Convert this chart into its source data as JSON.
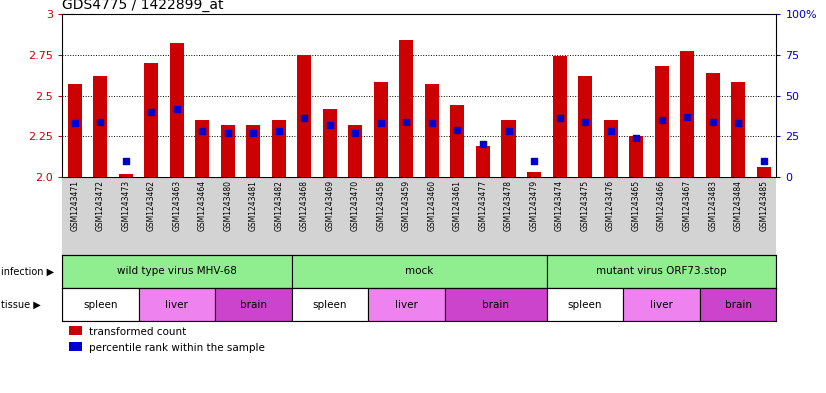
{
  "title": "GDS4775 / 1422899_at",
  "samples": [
    "GSM1243471",
    "GSM1243472",
    "GSM1243473",
    "GSM1243462",
    "GSM1243463",
    "GSM1243464",
    "GSM1243480",
    "GSM1243481",
    "GSM1243482",
    "GSM1243468",
    "GSM1243469",
    "GSM1243470",
    "GSM1243458",
    "GSM1243459",
    "GSM1243460",
    "GSM1243461",
    "GSM1243477",
    "GSM1243478",
    "GSM1243479",
    "GSM1243474",
    "GSM1243475",
    "GSM1243476",
    "GSM1243465",
    "GSM1243466",
    "GSM1243467",
    "GSM1243483",
    "GSM1243484",
    "GSM1243485"
  ],
  "transformed_count": [
    2.57,
    2.62,
    2.02,
    2.7,
    2.82,
    2.35,
    2.32,
    2.32,
    2.35,
    2.75,
    2.42,
    2.32,
    2.58,
    2.84,
    2.57,
    2.44,
    2.19,
    2.35,
    2.03,
    2.74,
    2.62,
    2.35,
    2.25,
    2.68,
    2.77,
    2.64,
    2.58,
    2.06
  ],
  "percentile_rank": [
    33,
    34,
    10,
    40,
    42,
    28,
    27,
    27,
    28,
    36,
    32,
    27,
    33,
    34,
    33,
    29,
    20,
    28,
    10,
    36,
    34,
    28,
    24,
    35,
    37,
    34,
    33,
    10
  ],
  "y_min": 2.0,
  "y_max": 3.0,
  "y_ticks_left": [
    2.0,
    2.25,
    2.5,
    2.75,
    3.0
  ],
  "y_ticks_right": [
    0,
    25,
    50,
    75,
    100
  ],
  "bar_color": "#cc0000",
  "dot_color": "#0000cc",
  "infection_groups": [
    {
      "label": "wild type virus MHV-68",
      "start": 0,
      "end": 9
    },
    {
      "label": "mock",
      "start": 9,
      "end": 19
    },
    {
      "label": "mutant virus ORF73.stop",
      "start": 19,
      "end": 28
    }
  ],
  "tissue_groups": [
    {
      "label": "spleen",
      "start": 0,
      "end": 3,
      "fc": "#ffffff"
    },
    {
      "label": "liver",
      "start": 3,
      "end": 6,
      "fc": "#ee82ee"
    },
    {
      "label": "brain",
      "start": 6,
      "end": 9,
      "fc": "#cc44cc"
    },
    {
      "label": "spleen",
      "start": 9,
      "end": 12,
      "fc": "#ffffff"
    },
    {
      "label": "liver",
      "start": 12,
      "end": 15,
      "fc": "#ee82ee"
    },
    {
      "label": "brain",
      "start": 15,
      "end": 19,
      "fc": "#cc44cc"
    },
    {
      "label": "spleen",
      "start": 19,
      "end": 22,
      "fc": "#ffffff"
    },
    {
      "label": "liver",
      "start": 22,
      "end": 25,
      "fc": "#ee82ee"
    },
    {
      "label": "brain",
      "start": 25,
      "end": 28,
      "fc": "#cc44cc"
    }
  ],
  "inf_color": "#90ee90",
  "xtick_bg": "#d3d3d3",
  "legend_labels": [
    "transformed count",
    "percentile rank within the sample"
  ],
  "legend_colors": [
    "#cc0000",
    "#0000cc"
  ]
}
